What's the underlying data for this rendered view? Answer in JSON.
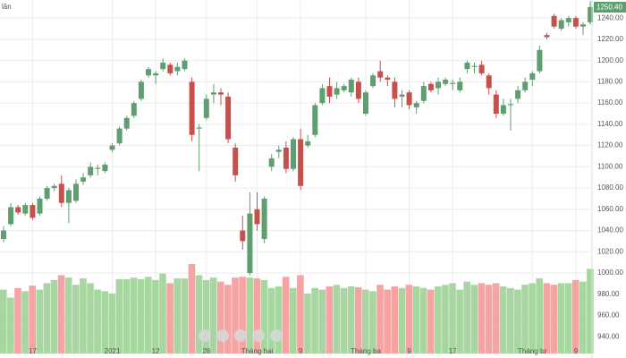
{
  "chart_data": {
    "type": "candlestick",
    "corner_label": "lần",
    "last_price_label": "1250.40",
    "categories": [
      null,
      null,
      null,
      null,
      "17",
      null,
      null,
      null,
      null,
      null,
      null,
      null,
      null,
      null,
      null,
      "2021",
      null,
      null,
      null,
      null,
      null,
      "12",
      null,
      null,
      null,
      null,
      null,
      null,
      "28",
      null,
      null,
      null,
      null,
      null,
      null,
      "Tháng hai",
      null,
      null,
      null,
      null,
      null,
      "9",
      null,
      null,
      null,
      null,
      null,
      null,
      null,
      null,
      "Tháng ba",
      null,
      null,
      null,
      null,
      null,
      "9",
      null,
      null,
      null,
      null,
      null,
      "17",
      null,
      null,
      null,
      null,
      null,
      null,
      null,
      null,
      null,
      null,
      "Tháng tư",
      null,
      null,
      null,
      null,
      null,
      "9",
      null,
      null
    ],
    "open": [
      1032,
      1046,
      1062,
      1056,
      1064,
      1056,
      1070,
      1080,
      1084,
      1066,
      1068,
      1086,
      1092,
      1098,
      1096,
      1116,
      1122,
      1136,
      1148,
      1164,
      1186,
      1186,
      1192,
      1196,
      1190,
      1192,
      1180,
      1136,
      1146,
      1168,
      1170,
      1166,
      1118,
      1040,
      1000,
      1060,
      1032,
      1100,
      1114,
      1118,
      1098,
      1126,
      1120,
      1130,
      1160,
      1176,
      1168,
      1172,
      1170,
      1180,
      1150,
      1176,
      1190,
      1184,
      1180,
      1166,
      1170,
      1156,
      1162,
      1178,
      1174,
      1178,
      1178,
      1172,
      1192,
      1194,
      1196,
      1186,
      1168,
      1150,
      1158,
      1164,
      1172,
      1182,
      1190,
      1224,
      1242,
      1230,
      1236,
      1240,
      1232,
      1236
    ],
    "high": [
      1044,
      1066,
      1064,
      1066,
      1066,
      1072,
      1082,
      1084,
      1092,
      1080,
      1088,
      1094,
      1104,
      1102,
      1104,
      1122,
      1138,
      1148,
      1162,
      1182,
      1194,
      1190,
      1202,
      1198,
      1198,
      1202,
      1184,
      1140,
      1168,
      1178,
      1174,
      1170,
      1122,
      1054,
      1076,
      1076,
      1072,
      1112,
      1120,
      1124,
      1128,
      1136,
      1130,
      1160,
      1178,
      1184,
      1180,
      1178,
      1184,
      1184,
      1172,
      1188,
      1200,
      1186,
      1184,
      1172,
      1172,
      1162,
      1180,
      1180,
      1184,
      1184,
      1182,
      1184,
      1200,
      1198,
      1200,
      1188,
      1172,
      1164,
      1164,
      1176,
      1184,
      1190,
      1214,
      1226,
      1244,
      1240,
      1242,
      1242,
      1236,
      1256
    ],
    "low": [
      1029,
      1044,
      1055,
      1054,
      1050,
      1054,
      1068,
      1077,
      1062,
      1047,
      1066,
      1083,
      1090,
      1092,
      1094,
      1114,
      1120,
      1134,
      1146,
      1162,
      1184,
      1178,
      1190,
      1186,
      1186,
      1190,
      1124,
      1096,
      1144,
      1160,
      1158,
      1122,
      1086,
      1022,
      998,
      1040,
      1028,
      1096,
      1108,
      1094,
      1096,
      1078,
      1118,
      1128,
      1158,
      1160,
      1164,
      1170,
      1166,
      1160,
      1148,
      1174,
      1180,
      1176,
      1156,
      1156,
      1154,
      1150,
      1160,
      1170,
      1168,
      1176,
      1172,
      1170,
      1188,
      1188,
      1186,
      1168,
      1146,
      1148,
      1134,
      1160,
      1170,
      1176,
      1188,
      1220,
      1230,
      1228,
      1232,
      1230,
      1224,
      1234
    ],
    "close": [
      1040,
      1062,
      1057,
      1064,
      1052,
      1070,
      1080,
      1082,
      1066,
      1078,
      1084,
      1090,
      1100,
      1099,
      1102,
      1120,
      1136,
      1146,
      1160,
      1180,
      1192,
      1188,
      1198,
      1188,
      1194,
      1200,
      1130,
      1137,
      1164,
      1170,
      1168,
      1126,
      1092,
      1030,
      1056,
      1046,
      1070,
      1108,
      1116,
      1098,
      1126,
      1082,
      1124,
      1158,
      1174,
      1166,
      1174,
      1176,
      1182,
      1164,
      1170,
      1186,
      1184,
      1182,
      1164,
      1168,
      1158,
      1160,
      1176,
      1172,
      1180,
      1182,
      1179,
      1180,
      1198,
      1195,
      1188,
      1174,
      1150,
      1158,
      1159,
      1172,
      1180,
      1188,
      1210,
      1222,
      1232,
      1238,
      1240,
      1232,
      1234,
      1250.4
    ],
    "volume": [
      80,
      70,
      82,
      78,
      85,
      80,
      88,
      92,
      98,
      95,
      86,
      94,
      88,
      80,
      78,
      75,
      93,
      93,
      95,
      93,
      96,
      92,
      100,
      88,
      94,
      94,
      112,
      98,
      92,
      95,
      90,
      86,
      95,
      96,
      95,
      94,
      92,
      82,
      84,
      96,
      82,
      98,
      75,
      82,
      80,
      84,
      86,
      82,
      84,
      83,
      80,
      78,
      86,
      80,
      84,
      82,
      86,
      84,
      82,
      80,
      84,
      86,
      88,
      80,
      90,
      86,
      88,
      86,
      88,
      84,
      82,
      80,
      86,
      88,
      94,
      88,
      86,
      88,
      88,
      92,
      90,
      106
    ],
    "up_color": "#5f9e70",
    "down_color": "#c6504c",
    "up_volume_color": "#a8d6a0",
    "down_volume_color": "#f5a3a3",
    "ylim": [
      920,
      1257
    ],
    "yticks": [
      {
        "value": 940,
        "label": "940.00"
      },
      {
        "value": 960,
        "label": "960.00"
      },
      {
        "value": 980,
        "label": "980.00"
      },
      {
        "value": 1000,
        "label": "1000.00"
      },
      {
        "value": 1020,
        "label": "1020.00"
      },
      {
        "value": 1040,
        "label": "1040.00"
      },
      {
        "value": 1060,
        "label": "1060.00"
      },
      {
        "value": 1080,
        "label": "1080.00"
      },
      {
        "value": 1100,
        "label": "1100.00"
      },
      {
        "value": 1120,
        "label": "1120.00"
      },
      {
        "value": 1140,
        "label": "1140.00"
      },
      {
        "value": 1160,
        "label": "1160.00"
      },
      {
        "value": 1180,
        "label": "1180.00"
      },
      {
        "value": 1200,
        "label": "1200.00"
      },
      {
        "value": 1220,
        "label": "1220.00"
      },
      {
        "value": 1240,
        "label": "1240.00"
      }
    ],
    "grid": true
  }
}
